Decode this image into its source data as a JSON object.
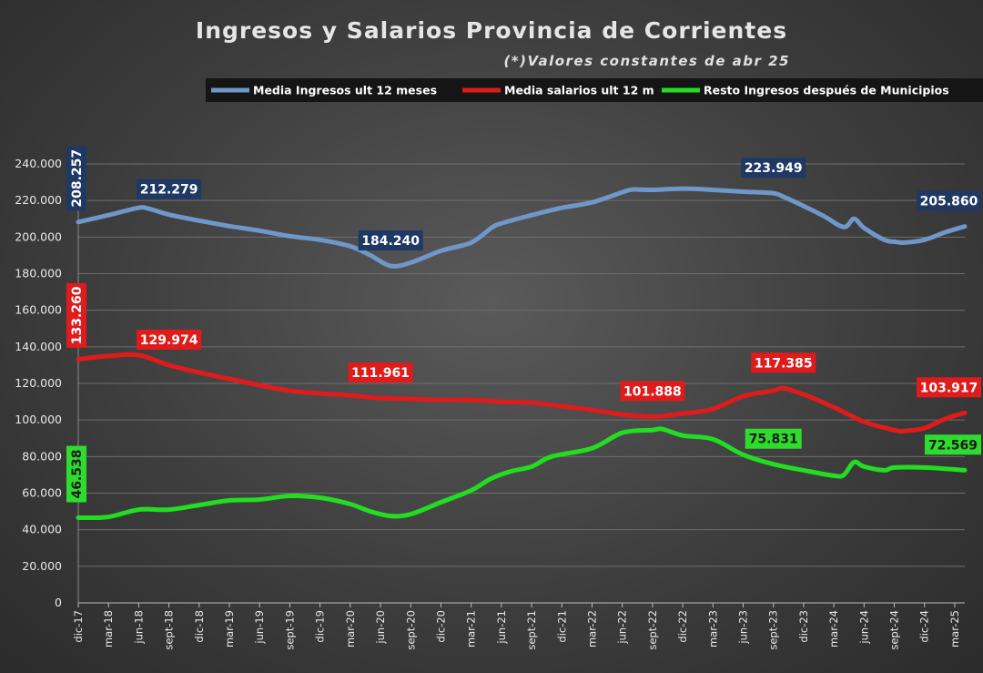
{
  "chart_data": {
    "type": "line",
    "title": "Ingresos y Salarios Provincia de Corrientes",
    "subtitle": "(*)Valores constantes de abr 25",
    "ylim": [
      0,
      240000
    ],
    "yticks": [
      "0",
      "20.000",
      "40.000",
      "60.000",
      "80.000",
      "100.000",
      "120.000",
      "140.000",
      "160.000",
      "180.000",
      "200.000",
      "220.000",
      "240.000"
    ],
    "ytick_values": [
      0,
      20000,
      40000,
      60000,
      80000,
      100000,
      120000,
      140000,
      160000,
      180000,
      200000,
      220000,
      240000
    ],
    "grid": true,
    "legend_placement": "top",
    "x_start": "dic-17",
    "x_end": "abr-25",
    "xticks": [
      "dic-17",
      "mar-18",
      "jun-18",
      "sept-18",
      "dic-18",
      "mar-19",
      "jun-19",
      "sept-19",
      "dic-19",
      "mar-20",
      "jun-20",
      "sept-20",
      "dic-20",
      "mar-21",
      "jun-21",
      "sept-21",
      "dic-21",
      "mar-22",
      "jun-22",
      "sept-22",
      "dic-22",
      "mar-23",
      "jun-23",
      "sept-23",
      "dic-23",
      "mar-24",
      "jun-24",
      "sept-24",
      "dic-24",
      "mar-25"
    ],
    "series": [
      {
        "name": "Media Ingresos ult 12 meses",
        "color": "#6f97c9",
        "label_bg": "#1f3864",
        "points": [
          [
            "dic-17",
            208257
          ],
          [
            "mar-18",
            212000
          ],
          [
            "jun-18",
            216000
          ],
          [
            "jul-18",
            215500
          ],
          [
            "sept-18",
            212279
          ],
          [
            "dic-18",
            209000
          ],
          [
            "mar-19",
            206000
          ],
          [
            "jun-19",
            203500
          ],
          [
            "sept-19",
            200500
          ],
          [
            "dic-19",
            198500
          ],
          [
            "mar-20",
            195000
          ],
          [
            "may-20",
            190000
          ],
          [
            "jul-20",
            184240
          ],
          [
            "sept-20",
            186000
          ],
          [
            "dic-20",
            192500
          ],
          [
            "mar-21",
            197000
          ],
          [
            "may-21",
            205000
          ],
          [
            "jun-21",
            207500
          ],
          [
            "sept-21",
            212000
          ],
          [
            "dic-21",
            216000
          ],
          [
            "mar-22",
            219000
          ],
          [
            "jun-22",
            224500
          ],
          [
            "jul-22",
            226000
          ],
          [
            "sept-22",
            225800
          ],
          [
            "dic-22",
            226500
          ],
          [
            "mar-23",
            225800
          ],
          [
            "jun-23",
            224800
          ],
          [
            "sept-23",
            223949
          ],
          [
            "oct-23",
            222000
          ],
          [
            "dic-23",
            217000
          ],
          [
            "feb-24",
            211500
          ],
          [
            "abr-24",
            205500
          ],
          [
            "may-24",
            210000
          ],
          [
            "jun-24",
            205000
          ],
          [
            "ago-24",
            198500
          ],
          [
            "sept-24",
            197500
          ],
          [
            "oct-24",
            197000
          ],
          [
            "dic-24",
            198500
          ],
          [
            "feb-25",
            202500
          ],
          [
            "abr-25",
            205860
          ]
        ],
        "labels": [
          {
            "at": "dic-17",
            "value": 208257,
            "text": "208.257",
            "vertical": true
          },
          {
            "at": "sept-18",
            "value": 212279,
            "text": "212.279"
          },
          {
            "at": "jul-20",
            "value": 184240,
            "text": "184.240"
          },
          {
            "at": "sept-23",
            "value": 223949,
            "text": "223.949"
          },
          {
            "at": "abr-25",
            "value": 205860,
            "text": "205.860"
          }
        ]
      },
      {
        "name": "Media salarios ult 12 m",
        "color": "#e01b1b",
        "label_bg": "#e01b1b",
        "points": [
          [
            "dic-17",
            133260
          ],
          [
            "mar-18",
            135000
          ],
          [
            "jun-18",
            135500
          ],
          [
            "sept-18",
            129974
          ],
          [
            "dic-18",
            126000
          ],
          [
            "mar-19",
            122500
          ],
          [
            "jun-19",
            119000
          ],
          [
            "sept-19",
            116000
          ],
          [
            "dic-19",
            114500
          ],
          [
            "mar-20",
            113500
          ],
          [
            "jun-20",
            111961
          ],
          [
            "sept-20",
            111500
          ],
          [
            "dic-20",
            111000
          ],
          [
            "mar-21",
            111000
          ],
          [
            "jun-21",
            110000
          ],
          [
            "sept-21",
            109500
          ],
          [
            "dic-21",
            107500
          ],
          [
            "mar-22",
            105500
          ],
          [
            "jun-22",
            103000
          ],
          [
            "sept-22",
            101888
          ],
          [
            "dic-22",
            103500
          ],
          [
            "mar-23",
            106000
          ],
          [
            "jun-23",
            113000
          ],
          [
            "sept-23",
            116000
          ],
          [
            "oct-23",
            117385
          ],
          [
            "dic-23",
            114000
          ],
          [
            "mar-24",
            107000
          ],
          [
            "jun-24",
            99000
          ],
          [
            "sept-24",
            94500
          ],
          [
            "oct-24",
            94000
          ],
          [
            "dic-24",
            95500
          ],
          [
            "feb-25",
            100500
          ],
          [
            "abr-25",
            103917
          ]
        ],
        "labels": [
          {
            "at": "dic-17",
            "value": 133260,
            "text": "133.260",
            "vertical": true
          },
          {
            "at": "sept-18",
            "value": 129974,
            "text": "129.974"
          },
          {
            "at": "jun-20",
            "value": 111961,
            "text": "111.961"
          },
          {
            "at": "sept-22",
            "value": 101888,
            "text": "101.888"
          },
          {
            "at": "oct-23",
            "value": 117385,
            "text": "117.385"
          },
          {
            "at": "abr-25",
            "value": 103917,
            "text": "103.917"
          }
        ]
      },
      {
        "name": "Resto Ingresos después de Municipios",
        "color": "#22dd22",
        "label_bg": "#2edc2e",
        "points": [
          [
            "dic-17",
            46538
          ],
          [
            "mar-18",
            47000
          ],
          [
            "jun-18",
            51000
          ],
          [
            "sept-18",
            51000
          ],
          [
            "dic-18",
            53500
          ],
          [
            "mar-19",
            56000
          ],
          [
            "jun-19",
            56500
          ],
          [
            "sept-19",
            58500
          ],
          [
            "dic-19",
            57500
          ],
          [
            "mar-20",
            54000
          ],
          [
            "may-20",
            50000
          ],
          [
            "jul-20",
            47500
          ],
          [
            "sept-20",
            48500
          ],
          [
            "dic-20",
            55000
          ],
          [
            "mar-21",
            61500
          ],
          [
            "may-21",
            68000
          ],
          [
            "jul-21",
            72000
          ],
          [
            "sept-21",
            74500
          ],
          [
            "nov-21",
            80000
          ],
          [
            "mar-22",
            84500
          ],
          [
            "jun-22",
            93000
          ],
          [
            "sept-22",
            94500
          ],
          [
            "oct-22",
            95000
          ],
          [
            "dic-22",
            91500
          ],
          [
            "mar-23",
            89500
          ],
          [
            "jun-23",
            81000
          ],
          [
            "sept-23",
            75831
          ],
          [
            "dic-23",
            72500
          ],
          [
            "mar-24",
            69500
          ],
          [
            "abr-24",
            70000
          ],
          [
            "may-24",
            77000
          ],
          [
            "jun-24",
            74500
          ],
          [
            "ago-24",
            72500
          ],
          [
            "sept-24",
            74000
          ],
          [
            "dic-24",
            74000
          ],
          [
            "abr-25",
            72569
          ]
        ],
        "labels": [
          {
            "at": "dic-17",
            "value": 46538,
            "text": "46.538",
            "vertical": true
          },
          {
            "at": "sept-23",
            "value": 75831,
            "text": "75.831"
          },
          {
            "at": "abr-25",
            "value": 72569,
            "text": "72.569"
          }
        ]
      }
    ]
  }
}
